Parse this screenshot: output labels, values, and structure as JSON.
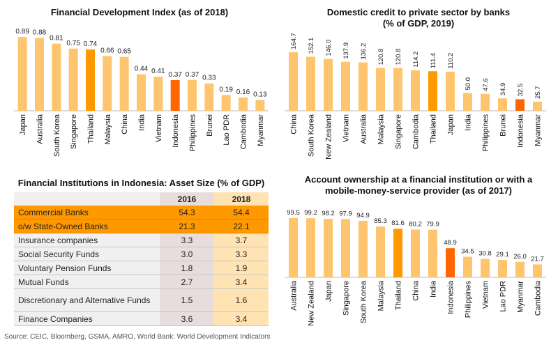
{
  "chart_data": [
    {
      "type": "bar",
      "title": "Financial Development Index (as of 2018)",
      "categories": [
        "Japan",
        "Australia",
        "South Korea",
        "Singapore",
        "Thailand",
        "Malaysia",
        "China",
        "India",
        "Vietnam",
        "Indonesia",
        "Philippines",
        "Brunei",
        "Lao PDR",
        "Cambodia",
        "Myanmar"
      ],
      "values": [
        0.89,
        0.88,
        0.81,
        0.75,
        0.74,
        0.66,
        0.65,
        0.44,
        0.41,
        0.37,
        0.37,
        0.33,
        0.19,
        0.16,
        0.13
      ],
      "labels": [
        "0.89",
        "0.88",
        "0.81",
        "0.75",
        "0.74",
        "0.66",
        "0.65",
        "0.44",
        "0.41",
        "0.37",
        "0.37",
        "0.33",
        "0.19",
        "0.16",
        "0.13"
      ],
      "ylim": [
        0,
        1
      ]
    },
    {
      "type": "bar",
      "title": "Domestic credit to private sector by banks (% of GDP, 2019)",
      "title_lines": [
        "Domestic credit to private sector by banks",
        "(% of GDP, 2019)"
      ],
      "categories": [
        "China",
        "South Korea",
        "New Zealand",
        "Vietnam",
        "Australia",
        "Malaysia",
        "Singapore",
        "Cambodia",
        "Thailand",
        "Japan",
        "India",
        "Philippines",
        "Brunei",
        "Indonesia",
        "Myanmar"
      ],
      "values": [
        164.7,
        152.1,
        146.0,
        137.9,
        136.2,
        120.8,
        120.8,
        114.2,
        111.4,
        110.2,
        50.0,
        47.6,
        34.9,
        32.5,
        25.7
      ],
      "labels": [
        "164.7",
        "152.1",
        "146.0",
        "137.9",
        "136.2",
        "120.8",
        "120.8",
        "114.2",
        "111.4",
        "110.2",
        "50.0",
        "47.6",
        "34.9",
        "32.5",
        "25.7"
      ],
      "ylim": [
        0,
        190
      ]
    },
    {
      "type": "bar",
      "title": "Account ownership at a financial institution or with a mobile-money-service provider (as of 2017)",
      "title_lines": [
        "Account ownership at a financial institution or with a",
        "mobile-money-service provider (as of 2017)"
      ],
      "categories": [
        "Australia",
        "New Zealand",
        "Japan",
        "Singapore",
        "South Korea",
        "Malaysia",
        "Thailand",
        "China",
        "India",
        "Indonesia",
        "Philippines",
        "Vietnam",
        "Lao PDR",
        "Myanmar",
        "Cambodia"
      ],
      "values": [
        99.5,
        99.2,
        98.2,
        97.9,
        94.9,
        85.3,
        81.6,
        80.2,
        79.9,
        48.9,
        34.5,
        30.8,
        29.1,
        26.0,
        21.7
      ],
      "labels": [
        "99.5",
        "99.2",
        "98.2",
        "97.9",
        "94.9",
        "85.3",
        "81.6",
        "80.2",
        "79.9",
        "48.9",
        "34.5",
        "30.8",
        "29.1",
        "26.0",
        "21.7"
      ],
      "ylim": [
        0,
        115
      ]
    }
  ],
  "colors": {
    "default": "#ffc56e",
    "thailand": "#ff9900",
    "indonesia": "#ff6600"
  },
  "table": {
    "title": "Financial Institutions in Indonesia: Asset Size (% of GDP)",
    "headers": [
      "",
      "2016",
      "2018"
    ],
    "rows": [
      {
        "label": "Commercial Banks",
        "v2016": "54.3",
        "v2018": "54.4"
      },
      {
        "label": "o/w State-Owned Banks",
        "v2016": "21.3",
        "v2018": "22.1"
      },
      {
        "label": "Insurance companies",
        "v2016": "3.3",
        "v2018": "3.7"
      },
      {
        "label": "Social Security Funds",
        "v2016": "3.0",
        "v2018": "3.3"
      },
      {
        "label": "Voluntary Pension Funds",
        "v2016": "1.8",
        "v2018": "1.9"
      },
      {
        "label": "Mutual Funds",
        "v2016": "2.7",
        "v2018": "3.4"
      },
      {
        "label": "Discretionary and Alternative Funds",
        "v2016": "1.5",
        "v2018": "1.6"
      },
      {
        "label": "Finance Companies",
        "v2016": "3.6",
        "v2018": "3.4"
      }
    ]
  },
  "source": "Source: CEIC, Bloomberg, GSMA, AMRO, World Bank: World Development Indicators"
}
